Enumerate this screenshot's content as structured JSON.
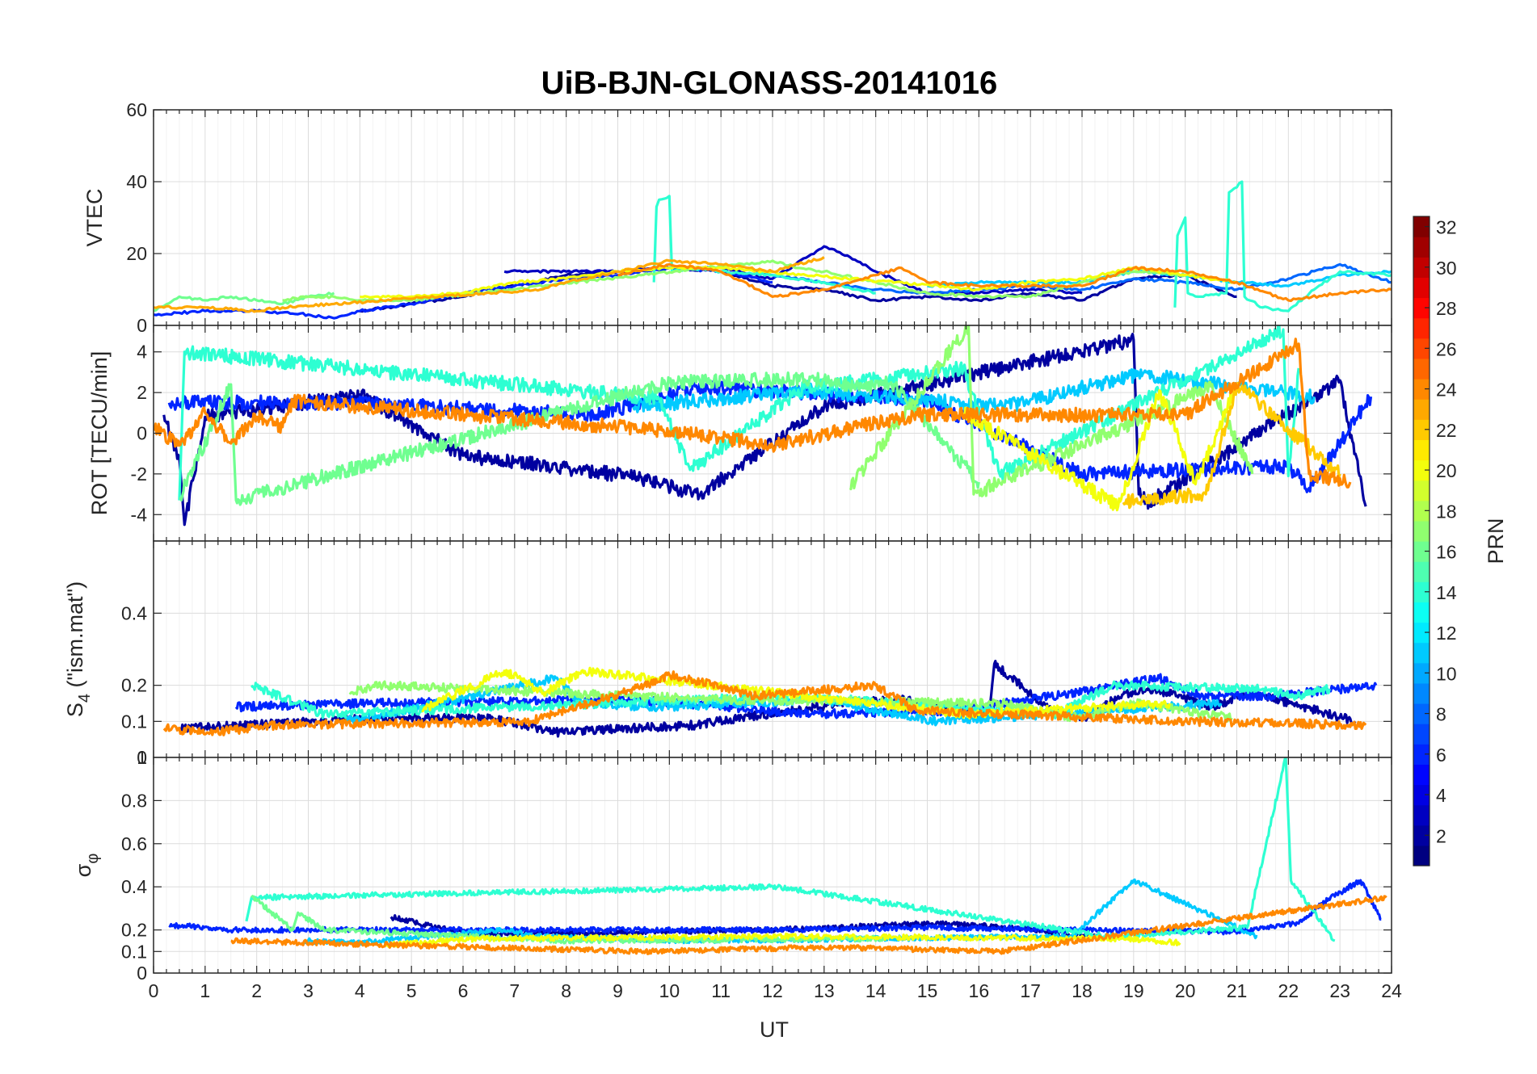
{
  "figure": {
    "title": "UiB-BJN-GLONASS-20141016"
  },
  "chart_data": {
    "type": "line",
    "title": "UiB-BJN-GLONASS-20141016",
    "xlabel": "UT",
    "xlim": [
      0,
      24
    ],
    "xticks": [
      0,
      1,
      2,
      3,
      4,
      5,
      6,
      7,
      8,
      9,
      10,
      11,
      12,
      13,
      14,
      15,
      16,
      17,
      18,
      19,
      20,
      21,
      22,
      23,
      24
    ],
    "colorbar": {
      "label": "PRN",
      "range": [
        1,
        32
      ],
      "ticks": [
        2,
        4,
        6,
        8,
        10,
        12,
        14,
        16,
        18,
        20,
        22,
        24,
        26,
        28,
        30,
        32
      ],
      "colormap": "jet"
    },
    "panels": [
      {
        "id": "vtec",
        "ylabel": "VTEC",
        "ylim": [
          0,
          60
        ],
        "yticks": [
          0,
          20,
          40,
          60
        ],
        "series": [
          {
            "prn": 2,
            "x": [
              4.0,
              5,
              6,
              7,
              8,
              9,
              10,
              11,
              12,
              13,
              14,
              15,
              16,
              17,
              18,
              19,
              20,
              21
            ],
            "y": [
              4,
              6,
              8,
              11,
              14,
              15,
              16,
              15,
              11,
              10,
              7,
              8,
              7,
              9,
              7,
              13,
              14,
              8
            ]
          },
          {
            "prn": 3,
            "x": [
              6.8,
              8,
              9,
              10,
              11,
              12,
              13.0,
              13.5,
              14,
              14.5,
              15,
              16,
              17,
              18
            ],
            "y": [
              15,
              15,
              15,
              16,
              16,
              13,
              22,
              19,
              15,
              12,
              9,
              9,
              10,
              9
            ]
          },
          {
            "prn": 6,
            "x": [
              0,
              1,
              2,
              3,
              3.5,
              4,
              5,
              6,
              7,
              8,
              9,
              10,
              11,
              12
            ],
            "y": [
              3,
              4,
              4,
              3,
              2,
              4,
              6,
              9,
              11,
              13,
              14,
              16,
              15,
              12
            ]
          },
          {
            "prn": 8,
            "x": [
              11.5,
              12,
              13,
              14,
              15,
              16,
              17,
              18,
              19,
              20,
              21,
              22,
              23,
              24
            ],
            "y": [
              16,
              14,
              12,
              10,
              9,
              10,
              11,
              10,
              13,
              12,
              10,
              13,
              17,
              12
            ]
          },
          {
            "prn": 11,
            "x": [
              15,
              16,
              17,
              18,
              19,
              20,
              21,
              22,
              23,
              24
            ],
            "y": [
              11,
              12,
              12,
              12,
              15,
              14,
              12,
              11,
              14,
              15
            ]
          },
          {
            "prn": 14,
            "x": [
              9.7,
              9.75,
              9.8,
              10.0,
              10.05,
              10.4,
              11,
              12,
              13,
              14
            ],
            "y": [
              12,
              33,
              35,
              36,
              15,
              16,
              15,
              14,
              12,
              9
            ]
          },
          {
            "prn": 14,
            "x": [
              19.8,
              19.85,
              20.0,
              20.05,
              20.3,
              20.8,
              20.85,
              21.1,
              21.15,
              21.5,
              22,
              22.5,
              23,
              24
            ],
            "y": [
              5,
              25,
              30,
              9,
              8,
              9,
              37,
              40,
              8,
              5,
              4,
              10,
              15,
              14
            ]
          },
          {
            "prn": 16,
            "x": [
              0,
              0.5,
              1,
              1.5,
              2,
              2.5,
              3,
              3.5
            ],
            "y": [
              4,
              8,
              7,
              8,
              7,
              6,
              8,
              9
            ]
          },
          {
            "prn": 17,
            "x": [
              2.5,
              3,
              3.5,
              4,
              4.5,
              5,
              12,
              12.5,
              13,
              14,
              15,
              16,
              17,
              18,
              19,
              20
            ],
            "y": [
              7,
              8,
              8,
              7,
              7,
              7,
              18,
              16,
              15,
              12,
              9,
              8,
              8,
              12,
              15,
              14
            ]
          },
          {
            "prn": 20,
            "x": [
              4,
              5,
              6,
              7,
              8,
              9,
              10,
              11,
              16,
              17,
              18,
              19,
              20,
              21
            ],
            "y": [
              8,
              8,
              9,
              12,
              13,
              15,
              16,
              16,
              10,
              12,
              13,
              16,
              14,
              12
            ]
          },
          {
            "prn": 23,
            "x": [
              0,
              1,
              2,
              2.5,
              7.5,
              8,
              9,
              10,
              11,
              12,
              13
            ],
            "y": [
              5,
              5,
              4,
              5,
              10,
              12,
              15,
              18,
              17,
              15,
              19
            ]
          },
          {
            "prn": 24,
            "x": [
              9,
              10,
              11,
              12,
              13,
              14,
              14.5,
              15,
              16,
              17,
              18,
              19,
              20,
              21,
              22,
              23,
              24
            ],
            "y": [
              14,
              17,
              15,
              8,
              10,
              14,
              16,
              12,
              11,
              11,
              11,
              16,
              15,
              12,
              7,
              9,
              10
            ]
          }
        ]
      },
      {
        "id": "rot",
        "ylabel": "ROT [TECU/min]",
        "ylim": [
          -5.3,
          5.3
        ],
        "yticks": [
          -4,
          -2,
          0,
          2,
          4
        ],
        "series": [
          {
            "prn": 2,
            "x": [
              0.2,
              0.5,
              0.6,
              1.0,
              4.0,
              6.0,
              9.2,
              10.6,
              13.0,
              19.0,
              19.1,
              19.3,
              23.0,
              23.5
            ],
            "y": [
              0.9,
              -1.2,
              -4.5,
              0.8,
              1.9,
              -1.1,
              -2.1,
              -3.0,
              1.3,
              4.6,
              -3.0,
              -3.4,
              2.6,
              -3.6
            ]
          },
          {
            "prn": 6,
            "x": [
              0.3,
              3.8,
              8.6,
              10.5,
              15.0,
              18.0,
              22.0,
              22.4,
              23.6
            ],
            "y": [
              1.5,
              1.5,
              0.9,
              2.3,
              1.6,
              -2.0,
              -1.6,
              -2.7,
              1.8
            ]
          },
          {
            "prn": 11,
            "x": [
              9.3,
              12.7,
              16.5,
              19.1,
              22.5
            ],
            "y": [
              1.3,
              2.1,
              1.3,
              2.9,
              1.8
            ]
          },
          {
            "prn": 14,
            "x": [
              0.5,
              0.6,
              9.8,
              10.4,
              12.6,
              15.7,
              16.4,
              21.9,
              22.0,
              22.2
            ],
            "y": [
              -3.3,
              4.0,
              1.7,
              -1.8,
              2.2,
              3.2,
              -2.0,
              5.1,
              -2.1,
              3.2
            ]
          },
          {
            "prn": 16,
            "x": [
              0.5,
              1.5,
              1.6,
              10.0,
              12.8,
              13.8,
              14.3,
              16.0
            ],
            "y": [
              -3.2,
              2.4,
              -3.3,
              2.5,
              2.7,
              2.2,
              2.5,
              -2.4
            ]
          },
          {
            "prn": 17,
            "x": [
              13.5,
              15.8,
              15.9,
              20.5,
              21.3
            ],
            "y": [
              -2.7,
              5.3,
              -3.0,
              2.3,
              -2.0
            ]
          },
          {
            "prn": 20,
            "x": [
              15.7,
              18.7,
              19.5,
              20.2,
              21.0
            ],
            "y": [
              1.0,
              -3.6,
              2.1,
              -2.5,
              2.4
            ]
          },
          {
            "prn": 22,
            "x": [
              18.8,
              20.4,
              21.0,
              23.0
            ],
            "y": [
              -3.4,
              -3.0,
              2.4,
              -2.0
            ]
          },
          {
            "prn": 24,
            "x": [
              0,
              0.5,
              1,
              1.5,
              2,
              2.5,
              2.7,
              10,
              12,
              14,
              14.8,
              20,
              22.2,
              22.4,
              23.2
            ],
            "y": [
              0.3,
              -0.6,
              1.0,
              -0.5,
              0.8,
              0.3,
              1.6,
              0.1,
              -0.6,
              0.5,
              0.9,
              0.9,
              4.4,
              -2.0,
              -2.4
            ]
          }
        ]
      },
      {
        "id": "s4",
        "ylabel": "S₄ (\"ism.mat\")",
        "ylabel_main": "S",
        "ylabel_sub": "4",
        "ylabel_rest": " (\"ism.mat\")",
        "ylim": [
          0,
          0.6
        ],
        "yticks": [
          0.1,
          0.2,
          0.4
        ],
        "extra_tick_labels": [
          "0",
          "1"
        ],
        "series": [
          {
            "prn": 2,
            "x": [
              0.5,
              4.5,
              6.5,
              7.8,
              10.5,
              13.3,
              14.5,
              16.2,
              16.3,
              17.4,
              18.1,
              18.7,
              19.4,
              20.5,
              21.3,
              23.3
            ],
            "y": [
              0.08,
              0.11,
              0.11,
              0.07,
              0.09,
              0.15,
              0.16,
              0.12,
              0.26,
              0.13,
              0.11,
              0.17,
              0.19,
              0.14,
              0.18,
              0.1
            ]
          },
          {
            "prn": 6,
            "x": [
              1.6,
              4.0,
              9.3,
              12.8,
              15.5,
              17.9,
              19.5,
              20.3,
              21.7,
              23.7
            ],
            "y": [
              0.14,
              0.15,
              0.16,
              0.12,
              0.13,
              0.18,
              0.22,
              0.17,
              0.17,
              0.2
            ]
          },
          {
            "prn": 11,
            "x": [
              3.7,
              5.9,
              7.8,
              8.3,
              9.8,
              12.9,
              15.2,
              20.7
            ],
            "y": [
              0.1,
              0.16,
              0.22,
              0.15,
              0.14,
              0.16,
              0.1,
              0.15
            ]
          },
          {
            "prn": 14,
            "x": [
              1.9,
              3.3,
              12.4,
              17.5,
              18.6,
              21.5,
              22.1,
              22.8
            ],
            "y": [
              0.2,
              0.12,
              0.17,
              0.12,
              0.2,
              0.19,
              0.17,
              0.19
            ]
          },
          {
            "prn": 17,
            "x": [
              3.8,
              4.4,
              11.1,
              16.5,
              17.8,
              19.1,
              20.9
            ],
            "y": [
              0.18,
              0.2,
              0.16,
              0.15,
              0.11,
              0.15,
              0.11
            ]
          },
          {
            "prn": 20,
            "x": [
              5.2,
              6.8,
              7.6,
              8.3,
              15.8,
              19.7
            ],
            "y": [
              0.13,
              0.24,
              0.18,
              0.24,
              0.12,
              0.15
            ]
          },
          {
            "prn": 24,
            "x": [
              0.2,
              1.2,
              2.4,
              7.3,
              9.8,
              10.0,
              11.7,
              14.0,
              14.8,
              20.0,
              23.5
            ],
            "y": [
              0.08,
              0.07,
              0.09,
              0.1,
              0.21,
              0.23,
              0.17,
              0.2,
              0.13,
              0.1,
              0.09
            ]
          }
        ]
      },
      {
        "id": "sigma_phi",
        "ylabel": "σ φ",
        "ylabel_main": "σ",
        "ylabel_sub": "φ",
        "ylim": [
          0,
          1
        ],
        "yticks": [
          0,
          0.1,
          0.2,
          0.4,
          0.6,
          0.8
        ],
        "series": [
          {
            "prn": 2,
            "x": [
              4.6,
              5.5,
              6.2,
              12.0,
              15.1,
              16.0,
              17.2,
              17.6,
              18.3
            ],
            "y": [
              0.26,
              0.21,
              0.18,
              0.2,
              0.23,
              0.22,
              0.2,
              0.17,
              0.18
            ]
          },
          {
            "prn": 6,
            "x": [
              0.3,
              0.6,
              1.2,
              11.8,
              14.9,
              20.9,
              22.2,
              22.7,
              23.4,
              23.8
            ],
            "y": [
              0.22,
              0.22,
              0.2,
              0.2,
              0.21,
              0.19,
              0.23,
              0.33,
              0.43,
              0.25
            ]
          },
          {
            "prn": 11,
            "x": [
              2.9,
              3.9,
              6.8,
              7.4,
              10.3,
              17.8,
              19.0,
              21.4
            ],
            "y": [
              0.15,
              0.14,
              0.2,
              0.17,
              0.15,
              0.17,
              0.43,
              0.17
            ]
          },
          {
            "prn": 14,
            "x": [
              1.8,
              1.9,
              12.1,
              18.5,
              21.2,
              21.95,
              22.05,
              22.9
            ],
            "y": [
              0.24,
              0.35,
              0.4,
              0.17,
              0.21,
              1.0,
              0.43,
              0.15
            ]
          },
          {
            "prn": 16,
            "x": [
              1.9,
              2.7,
              2.8,
              3.3,
              8.0,
              14.2
            ],
            "y": [
              0.36,
              0.2,
              0.28,
              0.2,
              0.15,
              0.16
            ]
          },
          {
            "prn": 20,
            "x": [
              4.5,
              6.3,
              12.2,
              18.8,
              19.9
            ],
            "y": [
              0.13,
              0.16,
              0.17,
              0.16,
              0.14
            ]
          },
          {
            "prn": 24,
            "x": [
              1.5,
              9.5,
              13.1,
              16.4,
              23.9
            ],
            "y": [
              0.15,
              0.1,
              0.12,
              0.1,
              0.35
            ]
          }
        ]
      }
    ]
  }
}
